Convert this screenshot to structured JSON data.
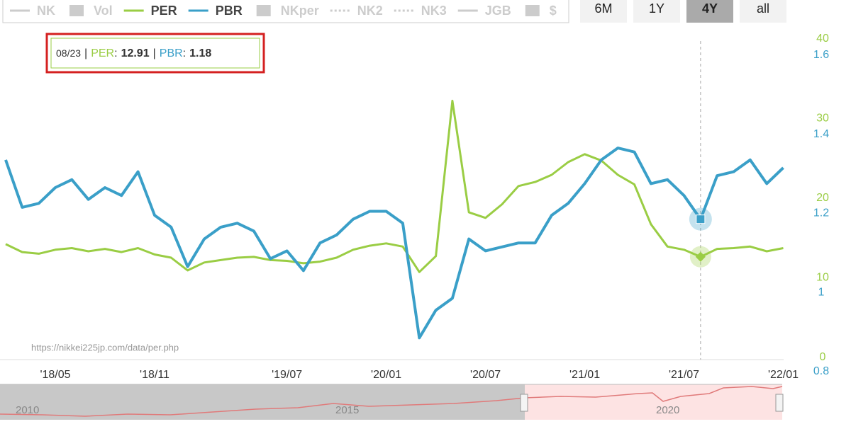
{
  "chart_data": {
    "type": "line",
    "categories": [
      null,
      null,
      null,
      "'18/05",
      null,
      null,
      null,
      null,
      null,
      "'18/11",
      null,
      null,
      null,
      null,
      null,
      null,
      null,
      "'19/07",
      null,
      null,
      null,
      null,
      null,
      "'20/01",
      null,
      null,
      null,
      null,
      null,
      "'20/07",
      null,
      null,
      null,
      null,
      null,
      "'21/01",
      null,
      null,
      null,
      null,
      null,
      "'21/07",
      null,
      null,
      null,
      null,
      null,
      "'22/01"
    ],
    "series": [
      {
        "name": "PER",
        "color": "#9acd44",
        "axis": "y",
        "values": [
          14.5,
          13.5,
          13.3,
          13.8,
          14.0,
          13.6,
          13.9,
          13.5,
          14.0,
          13.2,
          12.8,
          11.2,
          12.2,
          12.5,
          12.8,
          12.9,
          12.5,
          12.4,
          12.1,
          12.3,
          12.8,
          13.8,
          14.3,
          14.6,
          14.2,
          11.0,
          13.0,
          32.5,
          18.5,
          17.8,
          19.5,
          21.8,
          22.3,
          23.2,
          24.8,
          25.8,
          25.0,
          23.2,
          22.0,
          17.0,
          14.2,
          13.8,
          12.91,
          13.9,
          14.0,
          14.2,
          13.6,
          14.0
        ]
      },
      {
        "name": "PBR",
        "color": "#3a9fc8",
        "axis": "y2",
        "values": [
          1.33,
          1.21,
          1.22,
          1.26,
          1.28,
          1.23,
          1.26,
          1.24,
          1.3,
          1.19,
          1.16,
          1.06,
          1.13,
          1.16,
          1.17,
          1.15,
          1.08,
          1.1,
          1.05,
          1.12,
          1.14,
          1.18,
          1.2,
          1.2,
          1.17,
          0.88,
          0.95,
          0.98,
          1.13,
          1.1,
          1.11,
          1.12,
          1.12,
          1.19,
          1.22,
          1.27,
          1.33,
          1.36,
          1.35,
          1.27,
          1.28,
          1.24,
          1.18,
          1.29,
          1.3,
          1.33,
          1.27,
          1.31
        ]
      }
    ],
    "ylim": [
      0,
      40
    ],
    "yticks": [
      0,
      10,
      20,
      30,
      40
    ],
    "y2lim": [
      0.8,
      1.6
    ],
    "y2ticks": [
      {
        "value": 0.8,
        "label": "0.8"
      },
      1,
      {
        "value": 1.2,
        "label": "1.2"
      },
      {
        "value": 1.4,
        "label": "1.4"
      },
      {
        "value": 1.6,
        "label": "1.6"
      }
    ],
    "legend_before": [
      {
        "name": "NK",
        "symbol": "line"
      },
      {
        "name": "Vol",
        "symbol": "box"
      }
    ],
    "legend_after": [
      {
        "name": "NKper",
        "symbol": "box"
      },
      {
        "name": "NK2",
        "symbol": "dots"
      },
      {
        "name": "NK3",
        "symbol": "dots"
      },
      {
        "name": "JGB",
        "symbol": "line"
      },
      {
        "name": "$",
        "symbol": "box"
      }
    ],
    "ranges": [
      "6M",
      "1Y",
      "4Y",
      "all"
    ],
    "active_range": "4Y",
    "tooltip": {
      "date": "08/23",
      "separator": "|",
      "colon": ":"
    },
    "source": "https://nikkei225jp.com/data/per.php",
    "navigator_years": [
      "2010",
      "2015",
      "2020"
    ]
  }
}
